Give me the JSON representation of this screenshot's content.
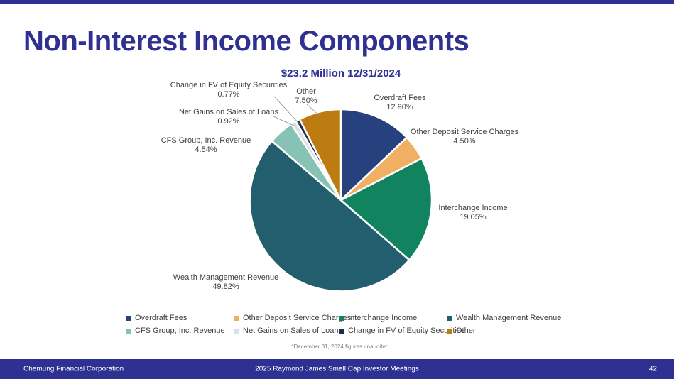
{
  "slide": {
    "title": "Non-Interest Income Components",
    "footnote": "*December 31, 2024 figures unaudited.",
    "accent_color": "#2e3192",
    "footer": {
      "left": "Chemung Financial Corporation",
      "center": "2025 Raymond James Small Cap Investor Meetings",
      "page_number": "42"
    }
  },
  "chart_data": {
    "type": "pie",
    "title": "$23.2 Million 12/31/2024",
    "legend_position": "bottom",
    "legend_rows": 2,
    "label_color": "#3f3f3f",
    "segments": [
      {
        "label": "Overdraft Fees",
        "value": 12.9,
        "display": "12.90%",
        "color": "#26417e"
      },
      {
        "label": "Other Deposit Service Charges",
        "value": 4.5,
        "display": "4.50%",
        "color": "#f1af63"
      },
      {
        "label": "Interchange Income",
        "value": 19.05,
        "display": "19.05%",
        "color": "#11835f"
      },
      {
        "label": "Wealth Management Revenue",
        "value": 49.82,
        "display": "49.82%",
        "color": "#235e6e"
      },
      {
        "label": "CFS Group, Inc. Revenue",
        "value": 4.54,
        "display": "4.54%",
        "color": "#87c3b4"
      },
      {
        "label": "Net Gains on Sales of Loans",
        "value": 0.92,
        "display": "0.92%",
        "color": "#dde0e3"
      },
      {
        "label": "Change in FV of Equity Securities",
        "value": 0.77,
        "display": "0.77%",
        "color": "#1c2b52"
      },
      {
        "label": "Other",
        "value": 7.5,
        "display": "7.50%",
        "color": "#bc7c11"
      }
    ]
  }
}
